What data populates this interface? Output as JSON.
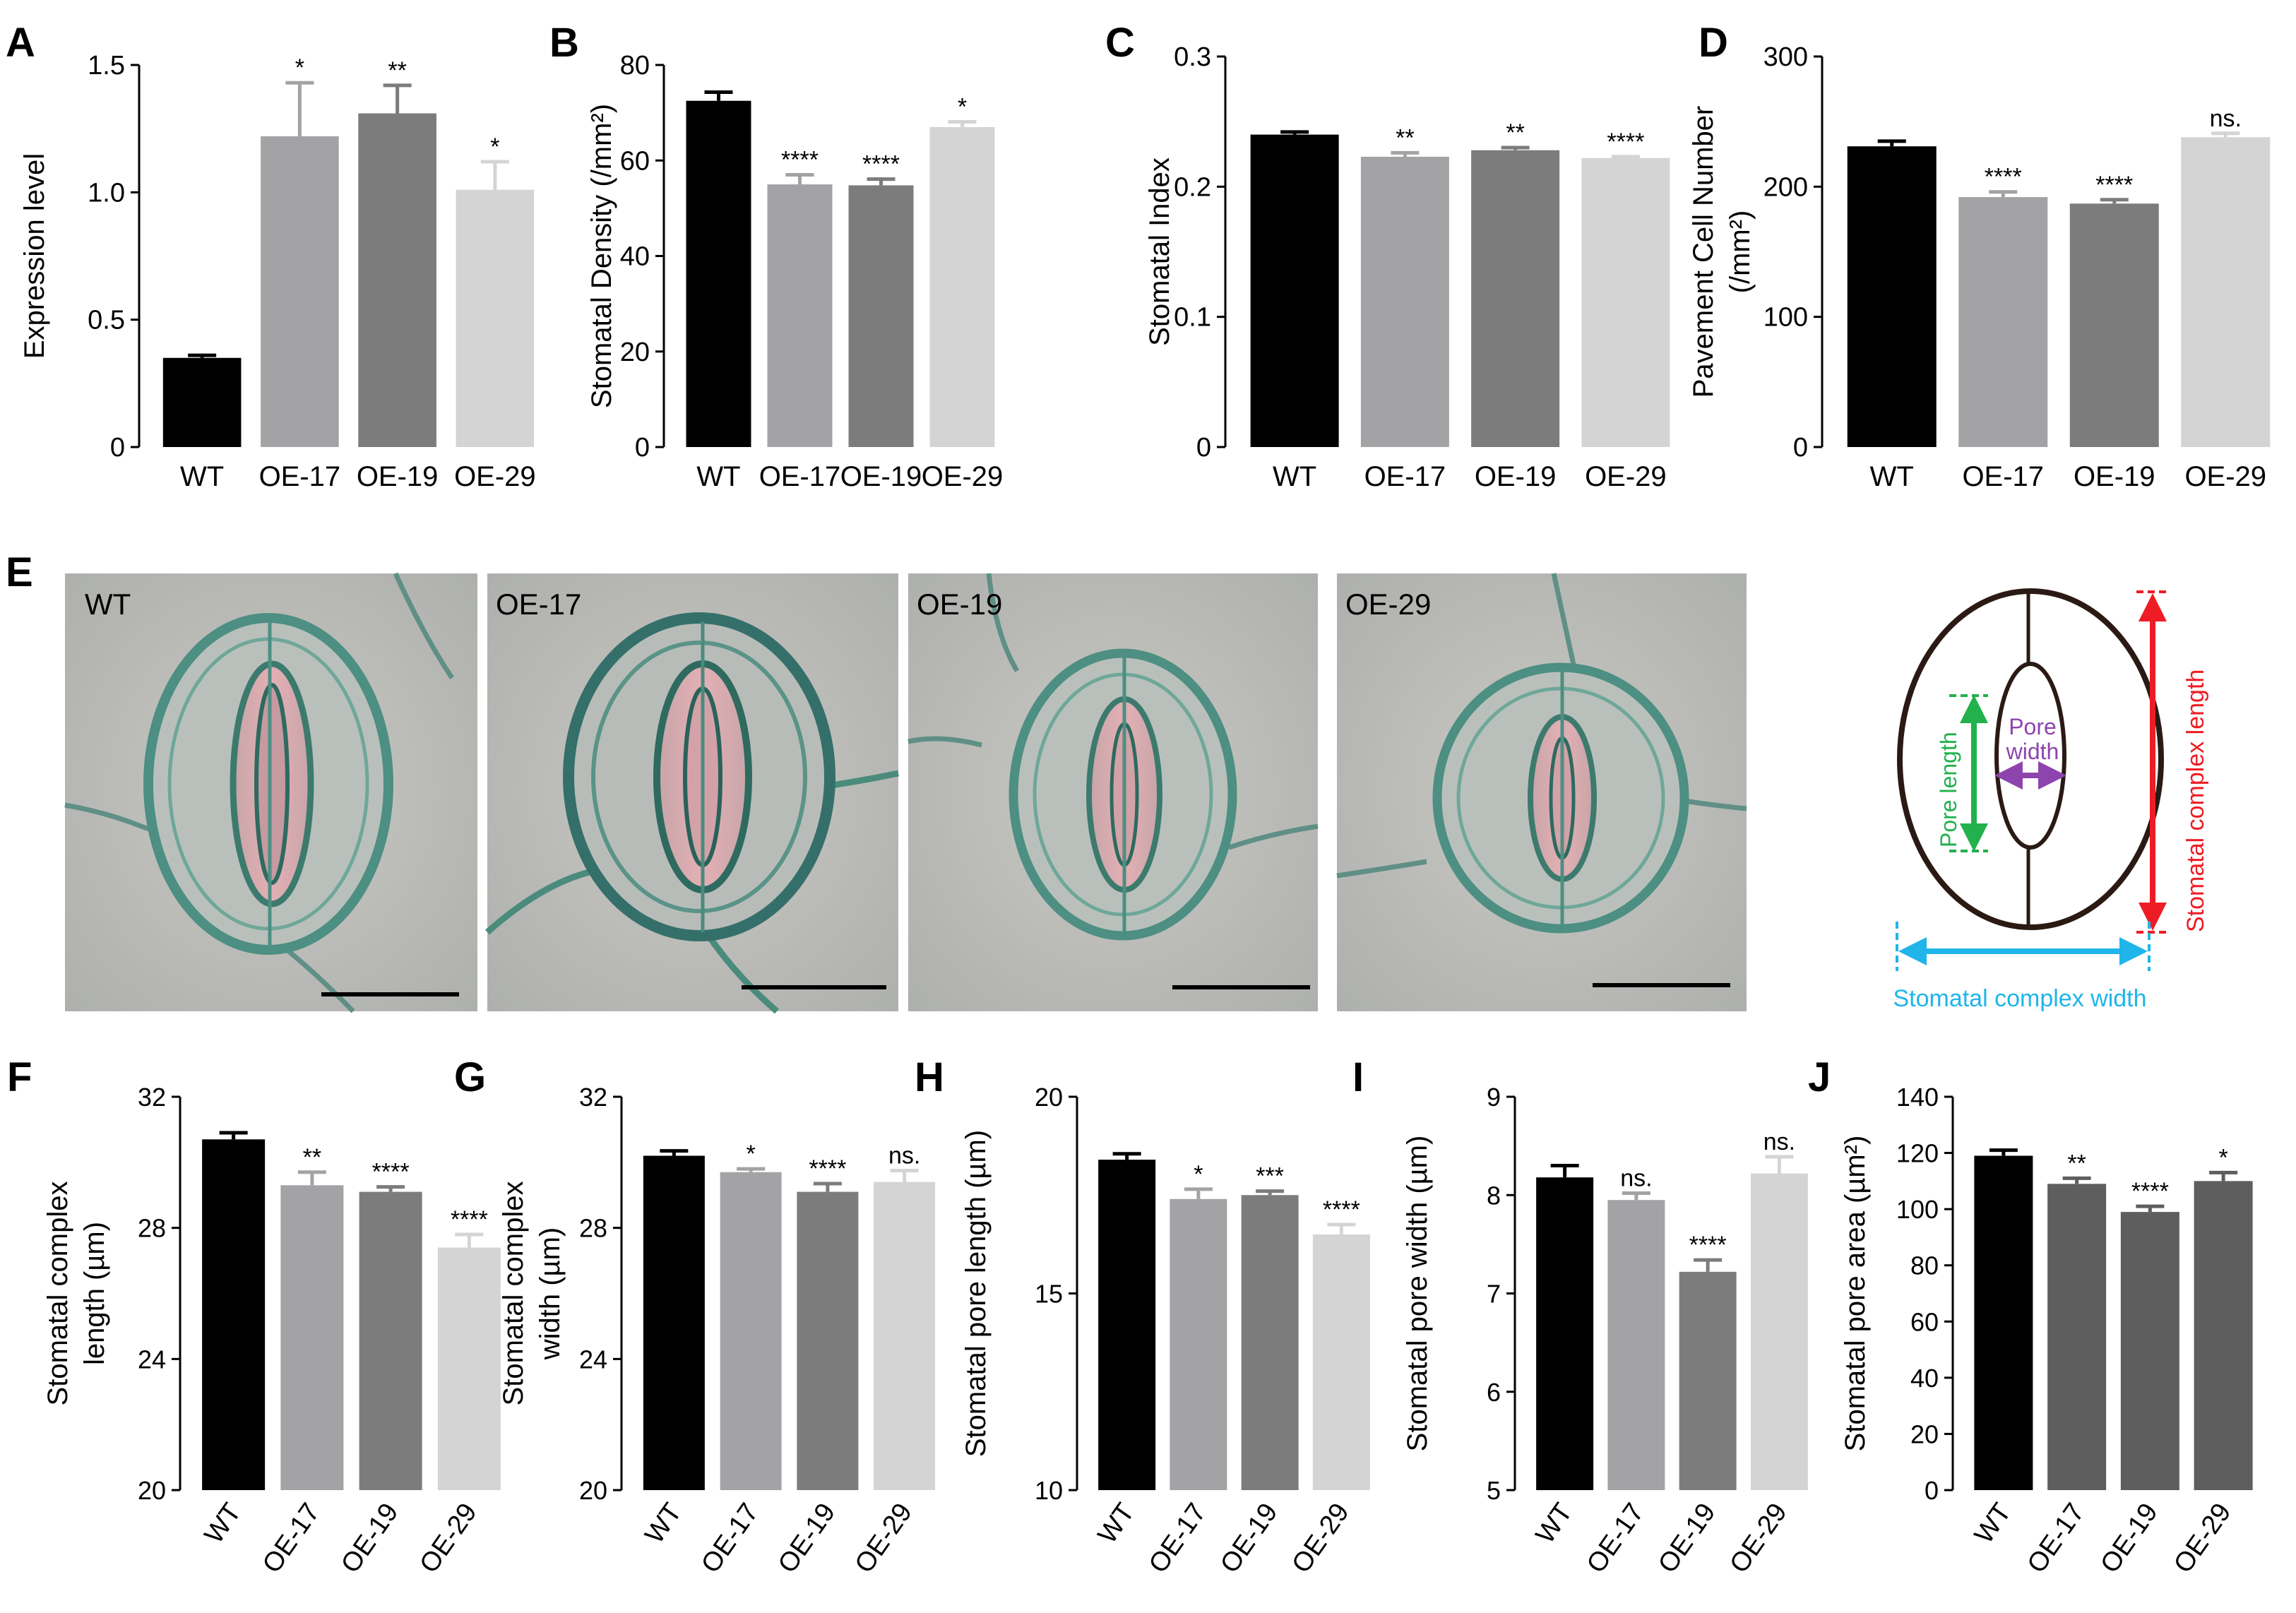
{
  "figure": {
    "photo_panel": {
      "letter": "E",
      "tiles": [
        {
          "label": "WT"
        },
        {
          "label": "OE-17"
        },
        {
          "label": "OE-19"
        },
        {
          "label": "OE-29"
        }
      ]
    },
    "diagram": {
      "pore_length": "Pore length",
      "pore_width_line1": "Pore",
      "pore_width_line2": "width",
      "complex_length": "Stomatal complex length",
      "complex_width": "Stomatal complex width",
      "colors": {
        "pore_length": "#22b14c",
        "pore_width": "#8e44ad",
        "complex_length": "#ee1c24",
        "complex_width": "#1fb5ea"
      }
    }
  },
  "chart_data": [
    {
      "panel": "A",
      "type": "bar",
      "categories": [
        "WT",
        "OE-17",
        "OE-19",
        "OE-29"
      ],
      "values": [
        0.35,
        1.22,
        1.31,
        1.01
      ],
      "errors": [
        0.01,
        0.21,
        0.11,
        0.11
      ],
      "significance": [
        "",
        "*",
        "**",
        "*"
      ],
      "ylabel": "Expression level",
      "ylim": [
        0,
        1.5
      ],
      "yticks": [
        0,
        0.5,
        1.0,
        1.5
      ],
      "ytick_labels": [
        "0",
        "0.5",
        "1.0",
        "1.5"
      ],
      "colors": [
        "#000000",
        "#a3a3a5",
        "#7c7c7c",
        "#d4d4d4"
      ]
    },
    {
      "panel": "B",
      "type": "bar",
      "categories": [
        "WT",
        "OE-17",
        "OE-19",
        "OE-29"
      ],
      "values": [
        72.5,
        55.0,
        54.8,
        67.0
      ],
      "errors": [
        1.8,
        2.0,
        1.3,
        1.1
      ],
      "significance": [
        "",
        "****",
        "****",
        "*"
      ],
      "ylabel": "Stomatal Density (/mm²)",
      "ylim": [
        0,
        80
      ],
      "yticks": [
        0,
        20,
        40,
        60,
        80
      ],
      "ytick_labels": [
        "0",
        "20",
        "40",
        "60",
        "80"
      ],
      "colors": [
        "#000000",
        "#a3a3a5",
        "#7c7c7c",
        "#d4d4d4"
      ]
    },
    {
      "panel": "C",
      "type": "bar",
      "categories": [
        "WT",
        "OE-17",
        "OE-19",
        "OE-29"
      ],
      "values": [
        0.24,
        0.223,
        0.228,
        0.222
      ],
      "errors": [
        0.002,
        0.003,
        0.002,
        0.001
      ],
      "significance": [
        "",
        "**",
        "**",
        "****"
      ],
      "ylabel": "Stomatal Index",
      "ylim": [
        0,
        0.3
      ],
      "yticks": [
        0,
        0.1,
        0.2,
        0.3
      ],
      "ytick_labels": [
        "0",
        "0.1",
        "0.2",
        "0.3"
      ],
      "colors": [
        "#000000",
        "#a3a3a5",
        "#7c7c7c",
        "#d4d4d4"
      ]
    },
    {
      "panel": "D",
      "type": "bar",
      "categories": [
        "WT",
        "OE-17",
        "OE-19",
        "OE-29"
      ],
      "values": [
        231,
        192,
        187,
        238
      ],
      "errors": [
        4,
        4,
        3,
        3
      ],
      "significance": [
        "",
        "****",
        "****",
        "ns."
      ],
      "ylabel": "Pavement Cell Number (/mm²)",
      "ylim": [
        0,
        300
      ],
      "yticks": [
        0,
        100,
        200,
        300
      ],
      "ytick_labels": [
        "0",
        "100",
        "200",
        "300"
      ],
      "colors": [
        "#000000",
        "#a3a3a5",
        "#7c7c7c",
        "#d4d4d4"
      ]
    },
    {
      "panel": "F",
      "type": "bar",
      "categories": [
        "WT",
        "OE-17",
        "OE-19",
        "OE-29"
      ],
      "values": [
        30.7,
        29.3,
        29.1,
        27.4
      ],
      "errors": [
        0.2,
        0.4,
        0.15,
        0.4
      ],
      "significance": [
        "",
        "**",
        "****",
        "****"
      ],
      "ylabel": "Stomatal complex length (µm)",
      "ylim": [
        20,
        32
      ],
      "yticks": [
        20,
        24,
        28,
        32
      ],
      "ytick_labels": [
        "20",
        "24",
        "28",
        "32"
      ],
      "colors": [
        "#000000",
        "#a3a3a5",
        "#7c7c7c",
        "#d4d4d4"
      ]
    },
    {
      "panel": "G",
      "type": "bar",
      "categories": [
        "WT",
        "OE-17",
        "OE-19",
        "OE-29"
      ],
      "values": [
        30.2,
        29.7,
        29.1,
        29.4
      ],
      "errors": [
        0.15,
        0.1,
        0.25,
        0.35
      ],
      "significance": [
        "",
        "*",
        "****",
        "ns."
      ],
      "ylabel": "Stomatal complex width (µm)",
      "ylim": [
        20,
        32
      ],
      "yticks": [
        20,
        24,
        28,
        32
      ],
      "ytick_labels": [
        "20",
        "24",
        "28",
        "32"
      ],
      "colors": [
        "#000000",
        "#a3a3a5",
        "#7c7c7c",
        "#d4d4d4"
      ]
    },
    {
      "panel": "H",
      "type": "bar",
      "categories": [
        "WT",
        "OE-17",
        "OE-19",
        "OE-29"
      ],
      "values": [
        18.4,
        17.4,
        17.5,
        16.5
      ],
      "errors": [
        0.15,
        0.25,
        0.1,
        0.25
      ],
      "significance": [
        "",
        "*",
        "***",
        "****"
      ],
      "ylabel": "Stomatal pore length (µm)",
      "ylim": [
        10,
        20
      ],
      "yticks": [
        10,
        15,
        20
      ],
      "ytick_labels": [
        "10",
        "15",
        "20"
      ],
      "colors": [
        "#000000",
        "#a3a3a5",
        "#7c7c7c",
        "#d4d4d4"
      ]
    },
    {
      "panel": "I",
      "type": "bar",
      "categories": [
        "WT",
        "OE-17",
        "OE-19",
        "OE-29"
      ],
      "values": [
        8.18,
        7.95,
        7.22,
        8.22
      ],
      "errors": [
        0.12,
        0.07,
        0.12,
        0.17
      ],
      "significance": [
        "",
        "ns.",
        "****",
        "ns."
      ],
      "ylabel": "Stomatal pore width (µm)",
      "ylim": [
        5,
        9
      ],
      "yticks": [
        5,
        6,
        7,
        8,
        9
      ],
      "ytick_labels": [
        "5",
        "6",
        "7",
        "8",
        "9"
      ],
      "colors": [
        "#000000",
        "#a3a3a5",
        "#7c7c7c",
        "#d4d4d4"
      ]
    },
    {
      "panel": "J",
      "type": "bar",
      "categories": [
        "WT",
        "OE-17",
        "OE-19",
        "OE-29"
      ],
      "values": [
        119,
        109,
        99,
        110
      ],
      "errors": [
        2,
        2,
        2,
        3
      ],
      "significance": [
        "",
        "**",
        "****",
        "*"
      ],
      "ylabel": "Stomatal pore area (µm²)",
      "ylim": [
        0,
        140
      ],
      "yticks": [
        0,
        20,
        40,
        60,
        80,
        100,
        120,
        140
      ],
      "ytick_labels": [
        "0",
        "20",
        "40",
        "60",
        "80",
        "100",
        "120",
        "140"
      ],
      "colors": [
        "#000000",
        "#5e5e5e",
        "#5e5e5e",
        "#5e5e5e"
      ]
    }
  ]
}
